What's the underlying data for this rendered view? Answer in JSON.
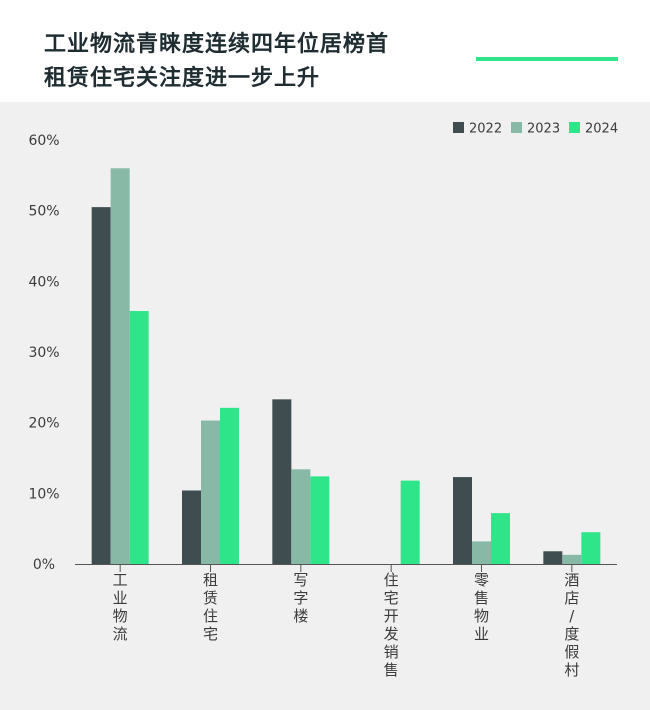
{
  "header": {
    "title_line1": "工业物流青睐度连续四年位居榜首",
    "title_line2": "租赁住宅关注度进一步上升"
  },
  "colors": {
    "accent": "#2ee58a",
    "s2022": "#3f4c50",
    "s2023": "#88b9a6",
    "s2024": "#2ee58a"
  },
  "chart_data": {
    "type": "bar",
    "categories": [
      "工业物流",
      "租赁住宅",
      "写字楼",
      "住宅开发销售",
      "零售物业",
      "酒店/度假村"
    ],
    "series": [
      {
        "name": "2022",
        "values": [
          50.5,
          10.4,
          23.3,
          0,
          12.3,
          1.8
        ]
      },
      {
        "name": "2023",
        "values": [
          56.0,
          20.3,
          13.4,
          0,
          3.2,
          1.3
        ]
      },
      {
        "name": "2024",
        "values": [
          35.8,
          22.1,
          12.4,
          11.8,
          7.2,
          4.5
        ]
      }
    ],
    "ylim": [
      0,
      60
    ],
    "yticks": [
      0,
      10,
      20,
      30,
      40,
      50,
      60
    ],
    "ytick_labels": [
      "0%",
      "10%",
      "20%",
      "30%",
      "40%",
      "50%",
      "60%"
    ],
    "legend_position": "top-right",
    "grid": false
  }
}
